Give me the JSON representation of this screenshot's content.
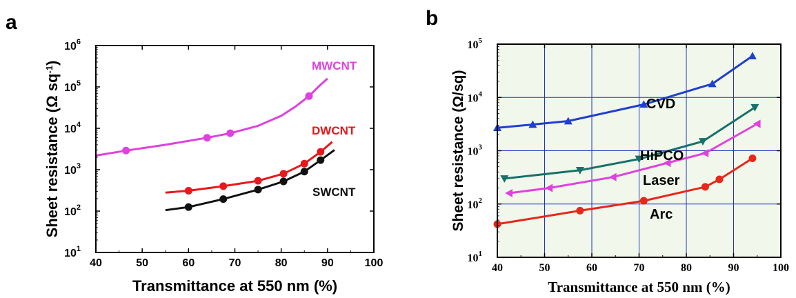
{
  "chart_data": [
    {
      "panel": "a",
      "type": "line",
      "xlabel": "Transmittance at 550 nm (%)",
      "ylabel_main": "Sheet resistance (Ω sq",
      "ylabel_sup": "-1",
      "ylabel_close": ")",
      "xlim": [
        40,
        100
      ],
      "ylim": [
        10,
        1000000
      ],
      "yscale": "log",
      "x_ticks": [
        "40",
        "50",
        "60",
        "70",
        "80",
        "90",
        "100"
      ],
      "y_ticks": [
        "10",
        "10",
        "10",
        "10",
        "10",
        "10"
      ],
      "y_tick_exps": [
        "1",
        "2",
        "3",
        "4",
        "5",
        "6"
      ],
      "grid": false,
      "series": [
        {
          "name": "MWCNT",
          "color": "#e040e0",
          "curve_x": [
            40,
            46.5,
            55,
            64,
            69,
            75,
            80,
            83,
            86,
            88,
            90
          ],
          "curve_y": [
            2200,
            2900,
            4000,
            5900,
            7600,
            11500,
            20000,
            33000,
            60000,
            100000,
            160000
          ],
          "marker_x": [
            46.5,
            64,
            69,
            86
          ],
          "marker_y": [
            2900,
            5900,
            7600,
            60000
          ]
        },
        {
          "name": "DWCNT",
          "color": "#e8171b",
          "curve_x": [
            55,
            60,
            67.5,
            75,
            80.5,
            85,
            88.5,
            91
          ],
          "curve_y": [
            280,
            310,
            400,
            540,
            800,
            1400,
            2700,
            4700
          ],
          "marker_x": [
            60,
            67.5,
            75,
            80.5,
            85,
            88.5
          ],
          "marker_y": [
            310,
            400,
            540,
            800,
            1400,
            2700
          ]
        },
        {
          "name": "SWCNT",
          "color": "#111111",
          "curve_x": [
            55,
            60,
            67.5,
            75,
            80.5,
            85,
            88.5,
            91.5
          ],
          "curve_y": [
            105,
            125,
            195,
            330,
            520,
            900,
            1700,
            3000
          ],
          "marker_x": [
            60,
            67.5,
            75,
            80.5,
            85,
            88.5
          ],
          "marker_y": [
            125,
            195,
            330,
            520,
            900,
            1700
          ]
        }
      ]
    },
    {
      "panel": "b",
      "type": "line",
      "xlabel": "Transmittance at 550 nm (%)",
      "ylabel": "Sheet resistance (Ω/sq)",
      "xlim": [
        40,
        100
      ],
      "ylim": [
        10,
        100000
      ],
      "yscale": "log",
      "x_ticks": [
        "40",
        "50",
        "60",
        "70",
        "80",
        "90",
        "100"
      ],
      "y_ticks": [
        "10",
        "10",
        "10",
        "10",
        "10"
      ],
      "y_tick_exps": [
        "1",
        "2",
        "3",
        "4",
        "5"
      ],
      "grid": true,
      "series": [
        {
          "name": "CVD",
          "color": "#1f3fd0",
          "marker": "triangle-up",
          "x": [
            40,
            47.5,
            55,
            71,
            85.5,
            94
          ],
          "y": [
            2700,
            3100,
            3600,
            7400,
            18000,
            60000
          ]
        },
        {
          "name": "HiPCO",
          "color": "#17706b",
          "marker": "triangle-down",
          "x": [
            41.5,
            57.5,
            70,
            83.5,
            94.5
          ],
          "y": [
            300,
            430,
            700,
            1500,
            6500
          ]
        },
        {
          "name": "Laser",
          "color": "#e040e0",
          "marker": "triangle-left",
          "x": [
            42.5,
            51,
            64.5,
            76,
            84,
            95
          ],
          "y": [
            160,
            200,
            320,
            590,
            900,
            3200
          ]
        },
        {
          "name": "Arc",
          "color": "#e8271b",
          "marker": "circle",
          "x": [
            40,
            57.5,
            71,
            84,
            87,
            94
          ],
          "y": [
            42,
            75,
            115,
            210,
            290,
            720
          ]
        }
      ]
    }
  ],
  "panel_letters": [
    "a",
    "b"
  ],
  "series_labels": {
    "MWCNT": "MWCNT",
    "DWCNT": "DWCNT",
    "SWCNT": "SWCNT",
    "CVD": "CVD",
    "HiPCO": "HiPCO",
    "Laser": "Laser",
    "Arc": "Arc"
  }
}
